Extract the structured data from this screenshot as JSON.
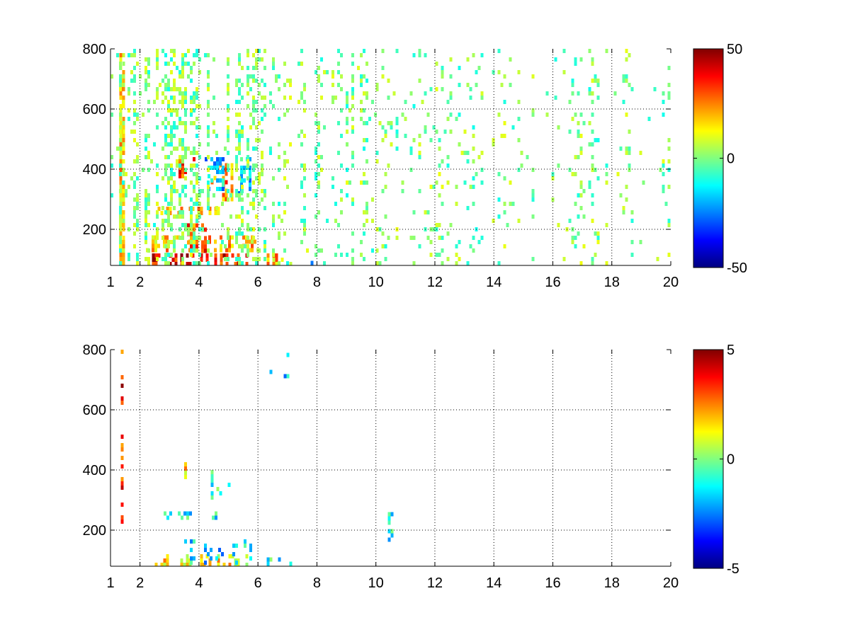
{
  "chart_data": [
    {
      "type": "heatmap",
      "title": "",
      "xlabel": "",
      "ylabel": "",
      "xlim": [
        1,
        20
      ],
      "ylim": [
        80,
        800
      ],
      "grid": true,
      "x_ticks": [
        "1",
        "2",
        "4",
        "6",
        "8",
        "10",
        "12",
        "14",
        "16",
        "18",
        "20"
      ],
      "x_tick_values": [
        1,
        2,
        4,
        6,
        8,
        10,
        12,
        14,
        16,
        18,
        20
      ],
      "y_ticks": [
        "200",
        "400",
        "600",
        "800"
      ],
      "y_tick_values": [
        200,
        400,
        600,
        800
      ],
      "colorbar": {
        "min": -50,
        "max": 50,
        "ticks": [
          "50",
          "0",
          "-50"
        ],
        "tick_values": [
          50,
          0,
          -50
        ],
        "colormap": "jet"
      },
      "features": [
        {
          "x": [
            2.4,
            5.8
          ],
          "y": [
            80,
            120
          ],
          "value": 38,
          "density": 0.9
        },
        {
          "x": [
            2.2,
            6.0
          ],
          "y": [
            120,
            180
          ],
          "value": 18,
          "density": 0.7
        },
        {
          "x": [
            6.3,
            7.4
          ],
          "y": [
            80,
            120
          ],
          "value": 20,
          "density": 0.7
        },
        {
          "x": [
            7.4,
            8.2
          ],
          "y": [
            80,
            110
          ],
          "value": -12,
          "density": 0.6
        },
        {
          "x": [
            3.3,
            3.9
          ],
          "y": [
            370,
            440
          ],
          "value": 32,
          "density": 0.8
        },
        {
          "x": [
            4.4,
            5.2
          ],
          "y": [
            290,
            420
          ],
          "value": 25,
          "density": 0.75
        },
        {
          "x": [
            2.6,
            4.8
          ],
          "y": [
            240,
            275
          ],
          "value": 20,
          "density": 0.8
        },
        {
          "x": [
            3.6,
            4.3
          ],
          "y": [
            120,
            220
          ],
          "value": 30,
          "density": 0.6
        },
        {
          "x": [
            4.2,
            4.9
          ],
          "y": [
            330,
            440
          ],
          "value": -18,
          "density": 0.5
        },
        {
          "x": [
            5.2,
            5.8
          ],
          "y": [
            320,
            440
          ],
          "value": -15,
          "density": 0.5
        },
        {
          "x": [
            1.3,
            1.45
          ],
          "y": [
            80,
            800
          ],
          "value": 15,
          "density": 0.8
        },
        {
          "x": [
            1.0,
            6.0
          ],
          "y": [
            80,
            800
          ],
          "value": 0,
          "density": 0.4
        },
        {
          "x": [
            6.0,
            10.0
          ],
          "y": [
            80,
            800
          ],
          "value": 0,
          "density": 0.22
        },
        {
          "x": [
            10.0,
            20.0
          ],
          "y": [
            80,
            800
          ],
          "value": 0,
          "density": 0.14
        }
      ]
    },
    {
      "type": "heatmap",
      "title": "",
      "xlabel": "",
      "ylabel": "",
      "xlim": [
        1,
        20
      ],
      "ylim": [
        80,
        800
      ],
      "grid": true,
      "x_ticks": [
        "1",
        "2",
        "4",
        "6",
        "8",
        "10",
        "12",
        "14",
        "16",
        "18",
        "20"
      ],
      "x_tick_values": [
        1,
        2,
        4,
        6,
        8,
        10,
        12,
        14,
        16,
        18,
        20
      ],
      "y_ticks": [
        "200",
        "400",
        "600",
        "800"
      ],
      "y_tick_values": [
        200,
        400,
        600,
        800
      ],
      "colorbar": {
        "min": -5,
        "max": 5,
        "ticks": [
          "5",
          "0",
          "-5"
        ],
        "tick_values": [
          5,
          0,
          -5
        ],
        "colormap": "jet"
      },
      "features": [
        {
          "x": [
            2.4,
            5.8
          ],
          "y": [
            80,
            120
          ],
          "value": 1.5,
          "density": 0.55
        },
        {
          "x": [
            3.5,
            5.8
          ],
          "y": [
            80,
            170
          ],
          "value": -1.5,
          "density": 0.35
        },
        {
          "x": [
            6.3,
            7.2
          ],
          "y": [
            80,
            110
          ],
          "value": -1.0,
          "density": 0.45
        },
        {
          "x": [
            3.3,
            3.8
          ],
          "y": [
            370,
            440
          ],
          "value": 1.8,
          "density": 0.55
        },
        {
          "x": [
            4.4,
            5.1
          ],
          "y": [
            300,
            400
          ],
          "value": -0.8,
          "density": 0.5
        },
        {
          "x": [
            2.8,
            5.0
          ],
          "y": [
            240,
            262
          ],
          "value": -1.2,
          "density": 0.6
        },
        {
          "x": [
            1.35,
            1.45
          ],
          "y": [
            200,
            800
          ],
          "value": 3.5,
          "density": 0.45
        },
        {
          "x": [
            6.3,
            7.2
          ],
          "y": [
            690,
            790
          ],
          "value": -2.0,
          "density": 0.25
        },
        {
          "x": [
            10.4,
            10.6
          ],
          "y": [
            160,
            260
          ],
          "value": -1.2,
          "density": 0.55
        }
      ]
    }
  ]
}
